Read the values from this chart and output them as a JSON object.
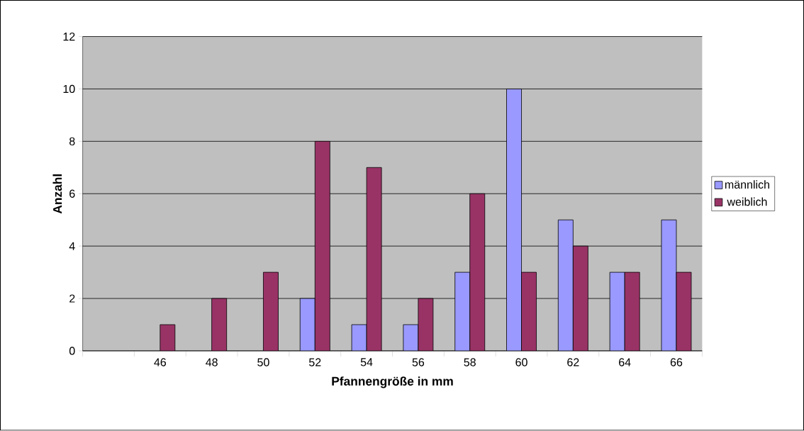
{
  "chart_data": {
    "type": "bar",
    "xlabel": "Pfannengröße in mm",
    "ylabel": "Anzahl",
    "categories": [
      null,
      "46",
      "48",
      "50",
      "52",
      "54",
      "56",
      "58",
      "60",
      "62",
      "64",
      "66"
    ],
    "series": [
      {
        "name": "männlich",
        "color": "#9999ff",
        "values": [
          null,
          null,
          null,
          null,
          2,
          1,
          1,
          3,
          10,
          5,
          3,
          5
        ]
      },
      {
        "name": "weiblich",
        "color": "#993366",
        "values": [
          null,
          1,
          2,
          3,
          8,
          7,
          2,
          6,
          3,
          4,
          3,
          3
        ]
      }
    ],
    "ylim": [
      0,
      12
    ],
    "yticks": [
      0,
      2,
      4,
      6,
      8,
      10,
      12
    ],
    "grid": "y",
    "legend": "right"
  }
}
